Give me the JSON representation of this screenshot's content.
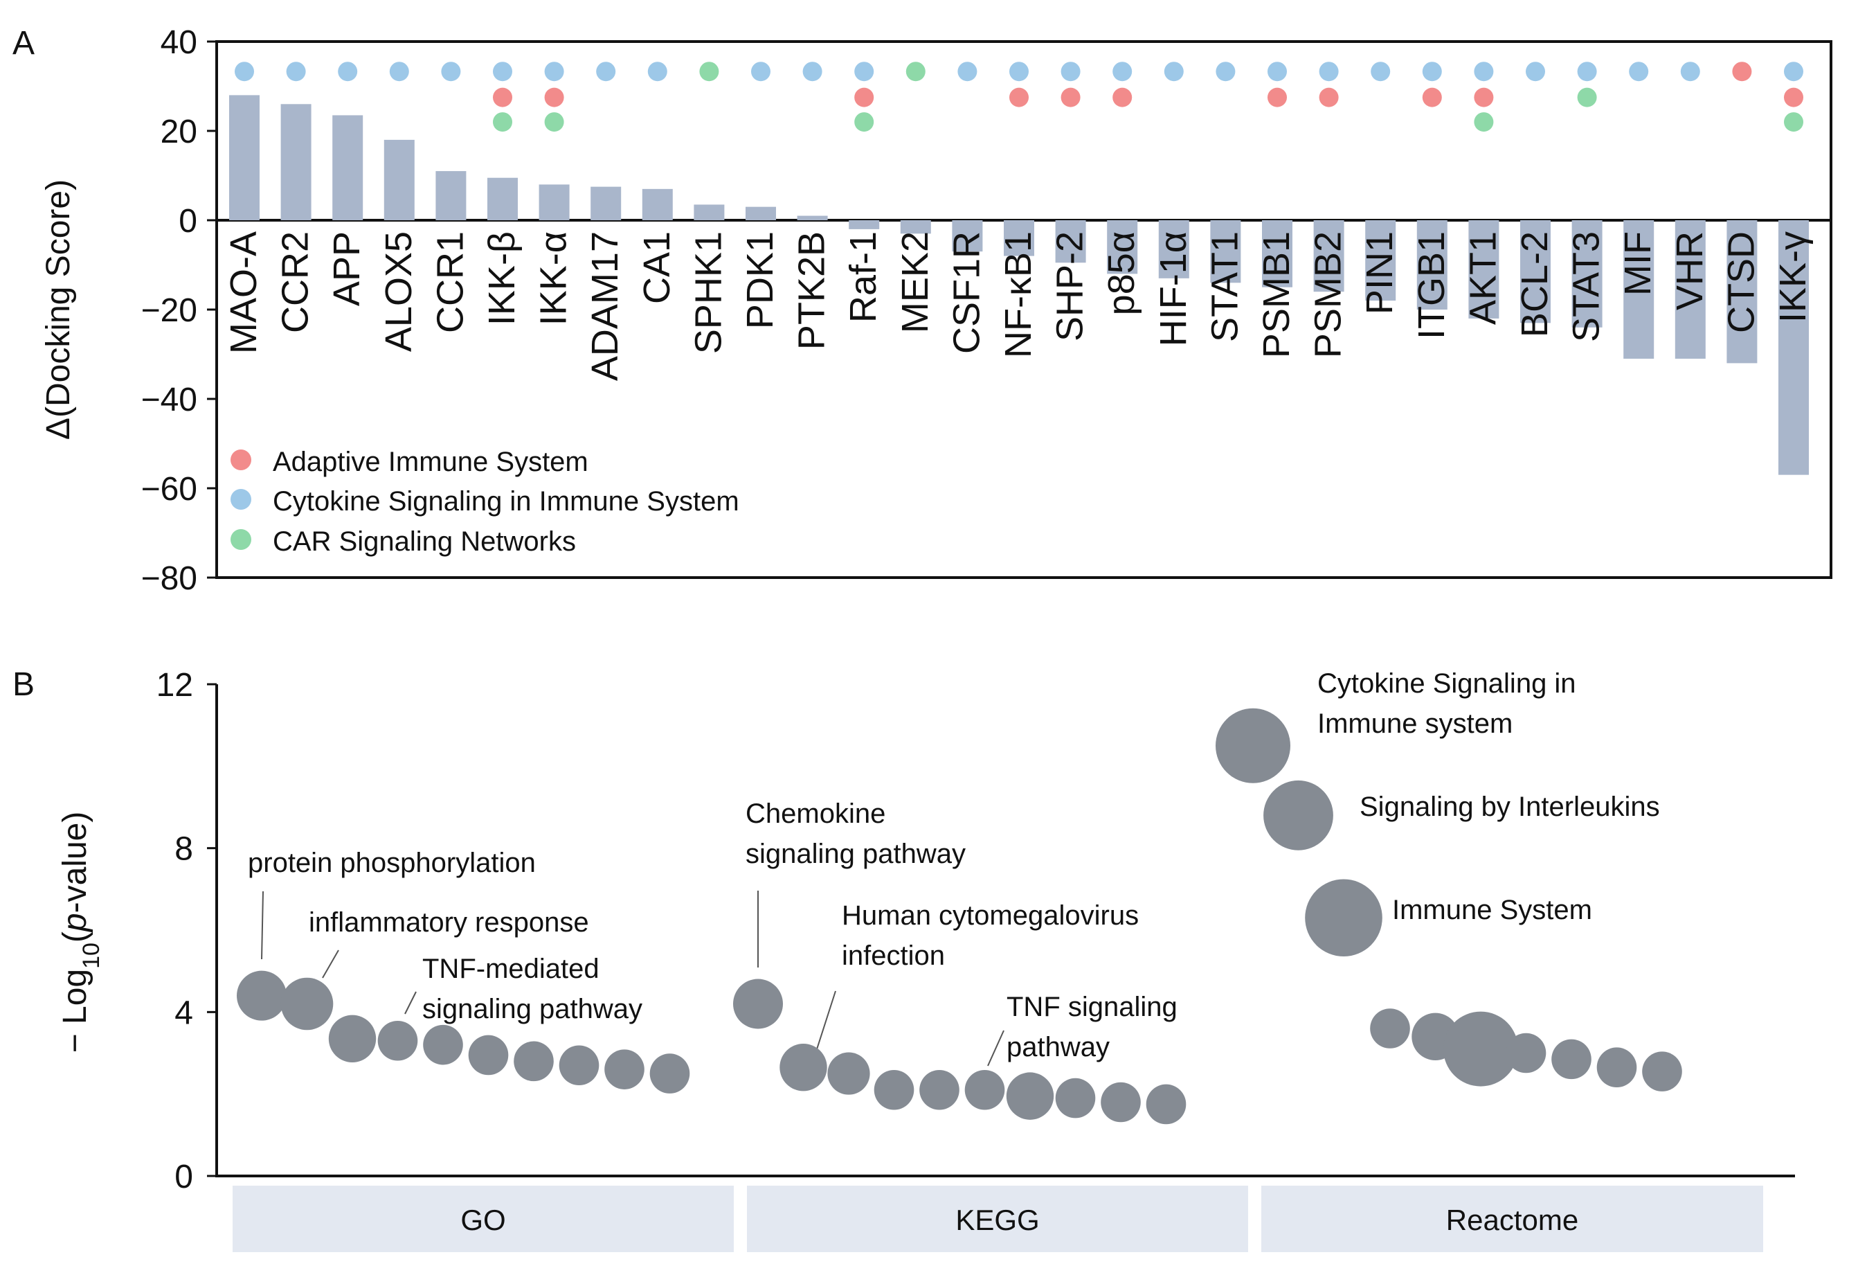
{
  "colors": {
    "bar": "#a9b6cb",
    "adaptive": "#f28b8b",
    "cytokine": "#9dc8e8",
    "car": "#8ed9a8",
    "bubble": "#858b93",
    "category_bg": "#e3e8f1",
    "axis": "#111111"
  },
  "chart_data": [
    {
      "panel": "A",
      "type": "bar",
      "ylabel": "Δ(Docking Score)",
      "ylim": [
        -80,
        40
      ],
      "yticks": [
        40,
        20,
        0,
        -20,
        -40,
        -60,
        -80
      ],
      "ytick_labels": [
        "40",
        "20",
        "0",
        "−20",
        "−40",
        "−60",
        "−80"
      ],
      "categories": [
        "MAO-A",
        "CCR2",
        "APP",
        "ALOX5",
        "CCR1",
        "IKK-β",
        "IKK-α",
        "ADAM17",
        "CA1",
        "SPHK1",
        "PDK1",
        "PTK2B",
        "Raf-1",
        "MEK2",
        "CSF1R",
        "NF-κB1",
        "SHP-2",
        "p85α",
        "HIF-1α",
        "STAT1",
        "PSMB1",
        "PSMB2",
        "PIN1",
        "ITGB1",
        "AKT1",
        "BCL-2",
        "STAT3",
        "MIF",
        "VHR",
        "CTSD",
        "IKK-γ"
      ],
      "values": [
        28,
        26,
        23.5,
        18,
        11,
        9.5,
        8,
        7.5,
        7,
        3.5,
        3,
        1,
        -2,
        -3,
        -7,
        -8,
        -9.5,
        -12,
        -13,
        -14,
        -15,
        -16,
        -18,
        -20,
        -22,
        -23,
        -24,
        -31,
        -31,
        -32,
        -57
      ],
      "pathways": {
        "adaptive": [
          "IKK-β",
          "IKK-α",
          "Raf-1",
          "NF-κB1",
          "SHP-2",
          "p85α",
          "PSMB1",
          "PSMB2",
          "ITGB1",
          "AKT1",
          "CTSD",
          "IKK-γ"
        ],
        "cytokine": [
          "MAO-A",
          "CCR2",
          "APP",
          "ALOX5",
          "CCR1",
          "IKK-β",
          "IKK-α",
          "ADAM17",
          "CA1",
          "PDK1",
          "PTK2B",
          "Raf-1",
          "CSF1R",
          "NF-κB1",
          "SHP-2",
          "p85α",
          "HIF-1α",
          "STAT1",
          "PSMB1",
          "PSMB2",
          "PIN1",
          "ITGB1",
          "AKT1",
          "BCL-2",
          "STAT3",
          "MIF",
          "VHR",
          "IKK-γ"
        ],
        "car": [
          "IKK-β",
          "IKK-α",
          "SPHK1",
          "Raf-1",
          "MEK2",
          "AKT1",
          "STAT3",
          "IKK-γ"
        ]
      },
      "legend": [
        {
          "label": "Adaptive Immune System",
          "key": "adaptive"
        },
        {
          "label": "Cytokine Signaling in Immune System",
          "key": "cytokine"
        },
        {
          "label": "CAR Signaling Networks",
          "key": "car"
        }
      ],
      "legend_position": "bottom-left"
    },
    {
      "panel": "B",
      "type": "scatter",
      "ylabel_prefix": "− Log",
      "ylabel_sub": "10",
      "ylabel_open": "(",
      "ylabel_italic": "p",
      "ylabel_rest": "-value)",
      "ylim": [
        0,
        12
      ],
      "yticks": [
        0,
        4,
        8,
        12
      ],
      "ytick_labels": [
        "0",
        "4",
        "8",
        "12"
      ],
      "groups": [
        "GO",
        "KEGG",
        "Reactome"
      ],
      "points": [
        {
          "group": "GO",
          "value": 4.4,
          "size": 1.0
        },
        {
          "group": "GO",
          "value": 4.2,
          "size": 1.05
        },
        {
          "group": "GO",
          "value": 3.35,
          "size": 0.95
        },
        {
          "group": "GO",
          "value": 3.3,
          "size": 0.8
        },
        {
          "group": "GO",
          "value": 3.2,
          "size": 0.8
        },
        {
          "group": "GO",
          "value": 2.95,
          "size": 0.8
        },
        {
          "group": "GO",
          "value": 2.8,
          "size": 0.8
        },
        {
          "group": "GO",
          "value": 2.7,
          "size": 0.8
        },
        {
          "group": "GO",
          "value": 2.6,
          "size": 0.8
        },
        {
          "group": "GO",
          "value": 2.5,
          "size": 0.8
        },
        {
          "group": "KEGG",
          "value": 4.2,
          "size": 1.0
        },
        {
          "group": "KEGG",
          "value": 2.65,
          "size": 0.95
        },
        {
          "group": "KEGG",
          "value": 2.5,
          "size": 0.85
        },
        {
          "group": "KEGG",
          "value": 2.1,
          "size": 0.8
        },
        {
          "group": "KEGG",
          "value": 2.1,
          "size": 0.8
        },
        {
          "group": "KEGG",
          "value": 2.1,
          "size": 0.8
        },
        {
          "group": "KEGG",
          "value": 1.95,
          "size": 0.95
        },
        {
          "group": "KEGG",
          "value": 1.9,
          "size": 0.8
        },
        {
          "group": "KEGG",
          "value": 1.8,
          "size": 0.8
        },
        {
          "group": "KEGG",
          "value": 1.75,
          "size": 0.8
        },
        {
          "group": "Reactome",
          "value": 10.5,
          "size": 1.5
        },
        {
          "group": "Reactome",
          "value": 8.8,
          "size": 1.4
        },
        {
          "group": "Reactome",
          "value": 6.3,
          "size": 1.55
        },
        {
          "group": "Reactome",
          "value": 3.6,
          "size": 0.8
        },
        {
          "group": "Reactome",
          "value": 3.4,
          "size": 0.95
        },
        {
          "group": "Reactome",
          "value": 3.1,
          "size": 1.5
        },
        {
          "group": "Reactome",
          "value": 3.0,
          "size": 0.8
        },
        {
          "group": "Reactome",
          "value": 2.85,
          "size": 0.8
        },
        {
          "group": "Reactome",
          "value": 2.65,
          "size": 0.8
        },
        {
          "group": "Reactome",
          "value": 2.55,
          "size": 0.8
        }
      ],
      "annotations": [
        {
          "lines": [
            "protein phosphorylation"
          ],
          "point": 0
        },
        {
          "lines": [
            "inflammatory response"
          ],
          "point": 1
        },
        {
          "lines": [
            "TNF-mediated",
            "signaling pathway"
          ],
          "point": 3
        },
        {
          "lines": [
            "Chemokine",
            "signaling pathway"
          ],
          "point": 10
        },
        {
          "lines": [
            "Human cytomegalovirus",
            "infection"
          ],
          "point": 11
        },
        {
          "lines": [
            "TNF signaling",
            "pathway"
          ],
          "point": 15
        },
        {
          "lines": [
            "Cytokine Signaling in",
            "Immune system"
          ],
          "point": 20
        },
        {
          "lines": [
            "Signaling by Interleukins"
          ],
          "point": 21
        },
        {
          "lines": [
            "Immune System"
          ],
          "point": 22
        }
      ]
    }
  ],
  "panel_labels": [
    "A",
    "B"
  ]
}
